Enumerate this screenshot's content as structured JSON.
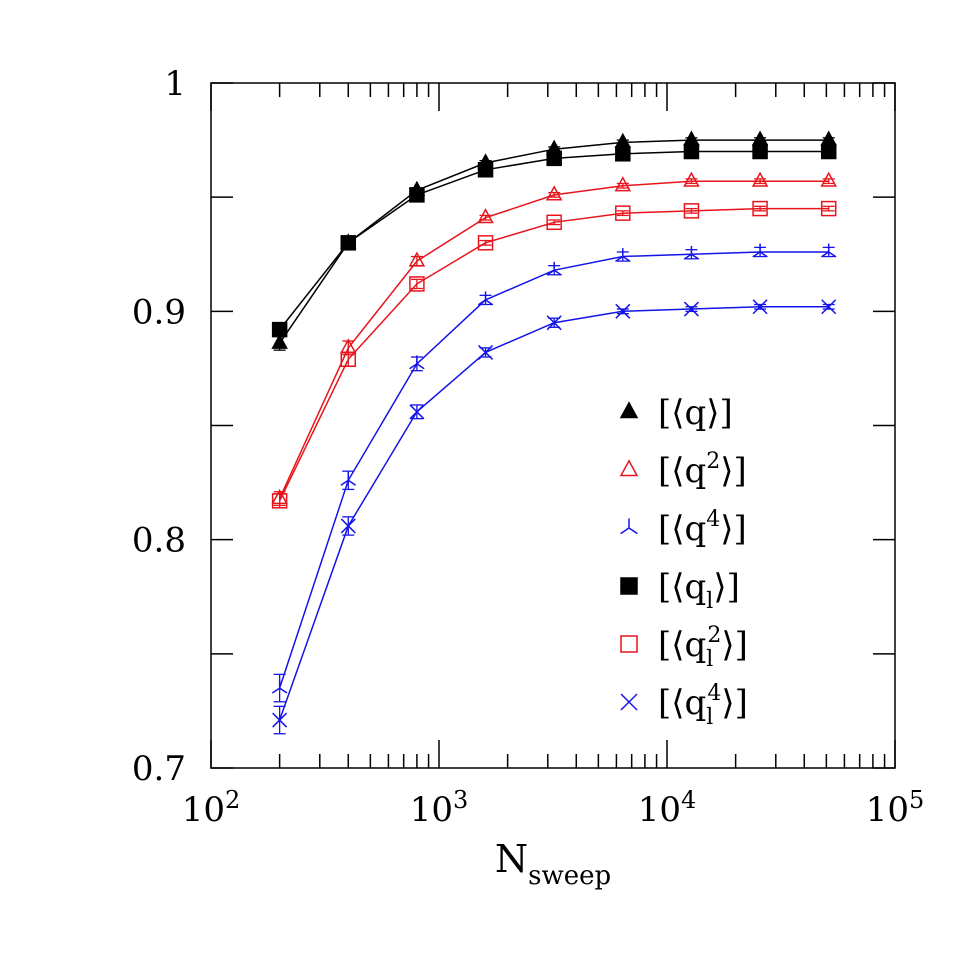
{
  "chart_data": {
    "type": "line",
    "xscale": "log",
    "xlim": [
      100,
      100000
    ],
    "ylim": [
      0.7,
      1.0
    ],
    "xlabel": "N",
    "xlabel_sub": "sweep",
    "ylabel": "",
    "grid": false,
    "legend_position": "right-middle",
    "x_ticks": [
      {
        "base": "10",
        "exp": "2"
      },
      {
        "base": "10",
        "exp": "3"
      },
      {
        "base": "10",
        "exp": "4"
      },
      {
        "base": "10",
        "exp": "5"
      }
    ],
    "y_ticks": [
      "0.7",
      "0.8",
      "0.9",
      "1"
    ],
    "x": [
      200,
      400,
      800,
      1600,
      3200,
      6400,
      12800,
      25600,
      51200
    ],
    "series": [
      {
        "name": "[⟨q⟩]",
        "marker": "filled-triangle",
        "color": "#000000",
        "values": [
          0.886,
          0.93,
          0.953,
          0.965,
          0.971,
          0.974,
          0.975,
          0.975,
          0.975
        ],
        "errors": [
          0.003,
          0.001,
          0.001,
          0.001,
          0.001,
          0.001,
          0.001,
          0.001,
          0.001
        ]
      },
      {
        "name": "[⟨q²⟩]",
        "marker": "open-triangle",
        "color": "#e8141c",
        "values": [
          0.818,
          0.884,
          0.922,
          0.941,
          0.951,
          0.955,
          0.957,
          0.957,
          0.957
        ],
        "errors": [
          0.003,
          0.003,
          0.002,
          0.001,
          0.001,
          0.001,
          0.001,
          0.001,
          0.001
        ]
      },
      {
        "name": "[⟨q⁴⟩]",
        "marker": "tri-star",
        "color": "#1414e8",
        "values": [
          0.735,
          0.826,
          0.877,
          0.905,
          0.918,
          0.924,
          0.925,
          0.926,
          0.926
        ],
        "errors": [
          0.006,
          0.004,
          0.003,
          0.002,
          0.002,
          0.002,
          0.002,
          0.002,
          0.002
        ]
      },
      {
        "name": "[⟨q_l⟩]",
        "marker": "filled-square",
        "color": "#000000",
        "values": [
          0.892,
          0.93,
          0.951,
          0.962,
          0.967,
          0.969,
          0.97,
          0.97,
          0.97
        ],
        "errors": [
          0.002,
          0.001,
          0.001,
          0.001,
          0.001,
          0.001,
          0.001,
          0.001,
          0.001
        ]
      },
      {
        "name": "[⟨q_l²⟩]",
        "marker": "open-square",
        "color": "#e8141c",
        "values": [
          0.817,
          0.879,
          0.912,
          0.93,
          0.939,
          0.943,
          0.944,
          0.945,
          0.945
        ],
        "errors": [
          0.003,
          0.003,
          0.002,
          0.001,
          0.001,
          0.001,
          0.001,
          0.001,
          0.001
        ]
      },
      {
        "name": "[⟨q_l⁴⟩]",
        "marker": "cross",
        "color": "#1414e8",
        "values": [
          0.721,
          0.806,
          0.856,
          0.882,
          0.895,
          0.9,
          0.901,
          0.902,
          0.902
        ],
        "errors": [
          0.006,
          0.004,
          0.003,
          0.002,
          0.002,
          0.001,
          0.001,
          0.001,
          0.001
        ]
      }
    ],
    "legend": [
      {
        "open": "[⟨",
        "base": "q",
        "sub": "",
        "sup": "",
        "close": "⟩]"
      },
      {
        "open": "[⟨",
        "base": "q",
        "sub": "",
        "sup": "2",
        "close": "⟩]"
      },
      {
        "open": "[⟨",
        "base": "q",
        "sub": "",
        "sup": "4",
        "close": "⟩]"
      },
      {
        "open": "[⟨",
        "base": "q",
        "sub": "l",
        "sup": "",
        "close": "⟩]"
      },
      {
        "open": "[⟨",
        "base": "q",
        "sub": "l",
        "sup": "2",
        "close": "⟩]"
      },
      {
        "open": "[⟨",
        "base": "q",
        "sub": "l",
        "sup": "4",
        "close": "⟩]"
      }
    ]
  }
}
